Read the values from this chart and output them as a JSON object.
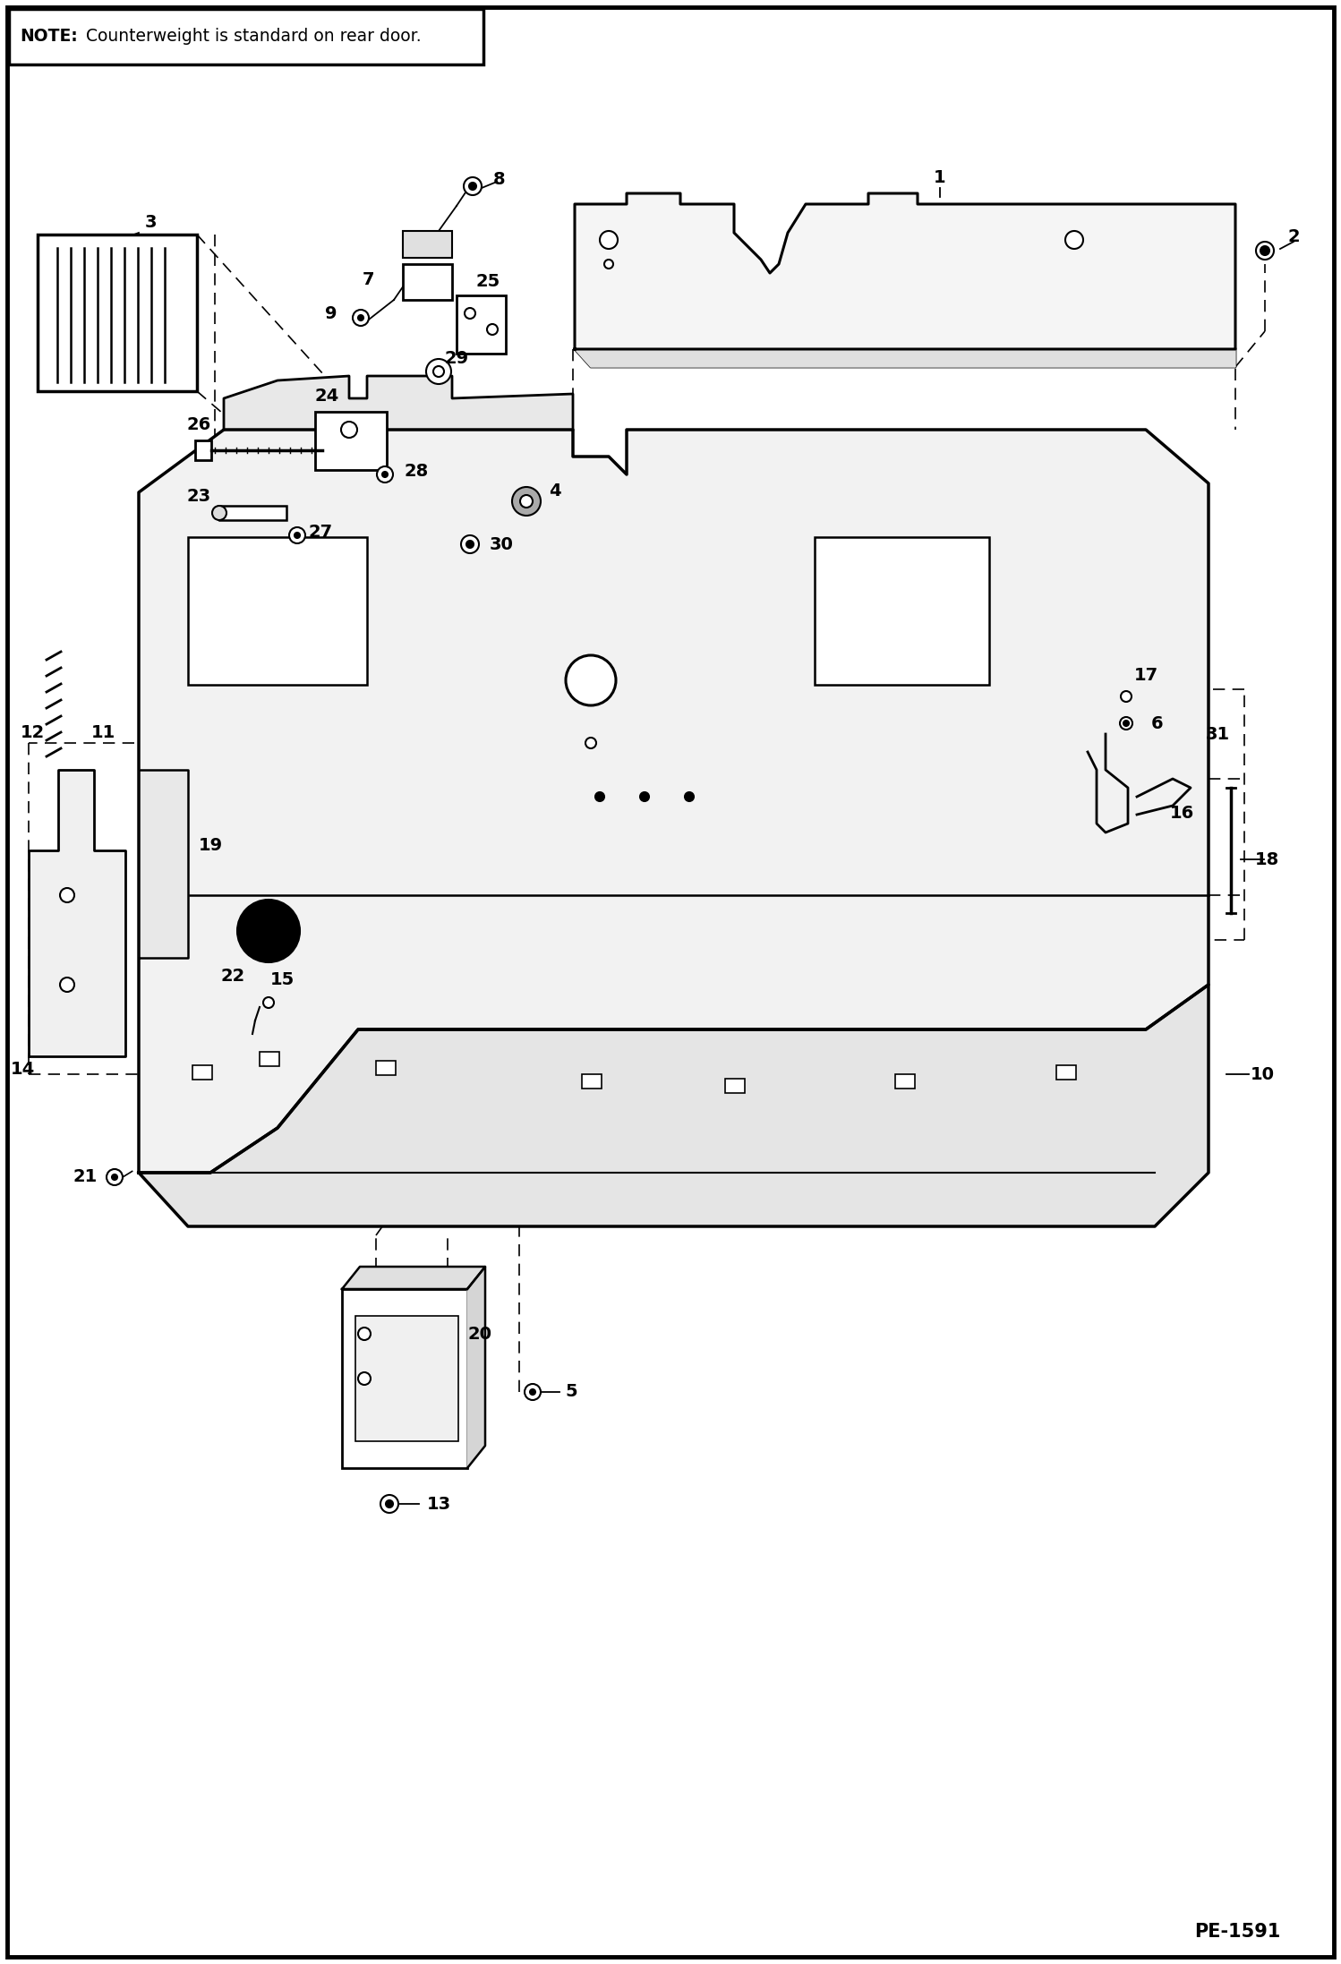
{
  "bg_color": "#ffffff",
  "note_text_bold": "NOTE:",
  "note_text_normal": " Counterweight is standard on rear door.",
  "page_id": "PE-1591",
  "fig_width": 14.98,
  "fig_height": 21.94,
  "dpi": 100
}
